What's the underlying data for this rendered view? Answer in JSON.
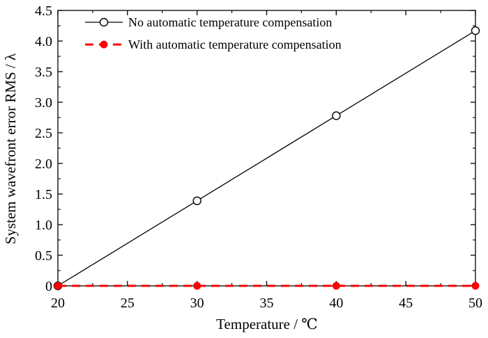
{
  "chart_data": {
    "type": "line",
    "title": "",
    "xlabel": "Temperature / ℃",
    "ylabel": "System wavefront error RMS / λ",
    "xlim": [
      20,
      50
    ],
    "ylim": [
      0,
      4.5
    ],
    "x_ticks": [
      "20",
      "25",
      "30",
      "35",
      "40",
      "45",
      "50"
    ],
    "y_ticks": [
      "0",
      "0.5",
      "1.0",
      "1.5",
      "2.0",
      "2.5",
      "3.0",
      "3.5",
      "4.0",
      "4.5"
    ],
    "grid": false,
    "legend_position": "top",
    "series": [
      {
        "name": "No automatic temperature compensation",
        "x": [
          20,
          30,
          40,
          50
        ],
        "values": [
          0,
          1.39,
          2.78,
          4.17
        ],
        "color": "#000000",
        "line_style": "solid",
        "marker": "open-circle"
      },
      {
        "name": "With automatic temperature compensation",
        "x": [
          20,
          30,
          40,
          50
        ],
        "values": [
          0,
          0,
          0,
          0
        ],
        "color": "#ff0000",
        "line_style": "dashed",
        "marker": "filled-circle"
      }
    ]
  }
}
